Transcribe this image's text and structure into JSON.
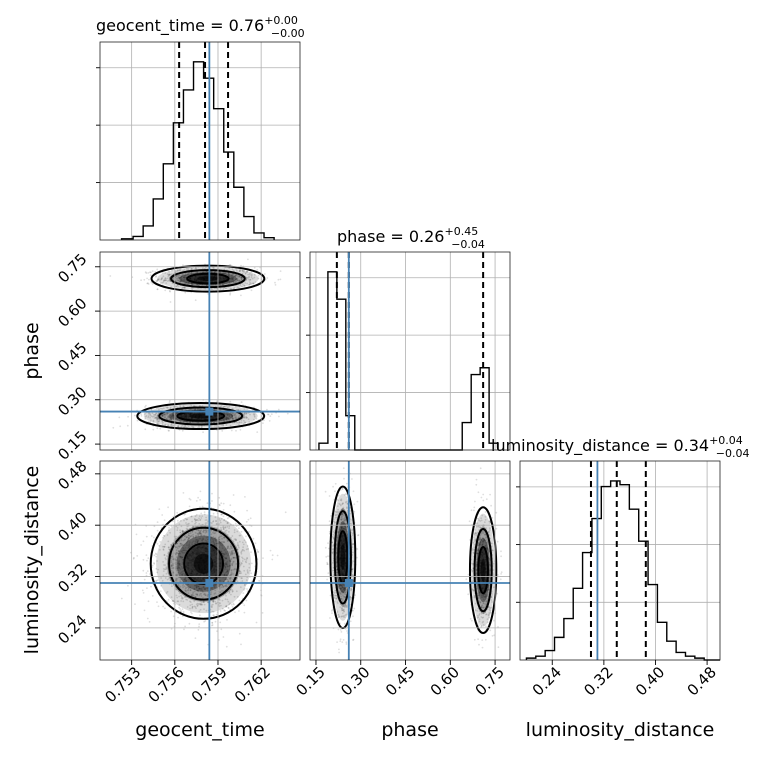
{
  "chart_data": {
    "type": "corner",
    "parameters": [
      "geocent_time",
      "phase",
      "luminosity_distance"
    ],
    "truths": {
      "geocent_time": 0.7584,
      "phase": 0.26,
      "luminosity_distance": 0.31
    },
    "axes": {
      "geocent_time": {
        "range": [
          0.7508,
          0.7647
        ],
        "ticks": [
          "0.753",
          "0.756",
          "0.759",
          "0.762"
        ],
        "tick_values": [
          0.753,
          0.756,
          0.759,
          0.762
        ]
      },
      "phase": {
        "range": [
          0.13,
          0.8
        ],
        "ticks": [
          "0.15",
          "0.30",
          "0.45",
          "0.60",
          "0.75"
        ],
        "tick_values": [
          0.15,
          0.3,
          0.45,
          0.6,
          0.75
        ]
      },
      "luminosity_distance": {
        "range": [
          0.19,
          0.5
        ],
        "ticks": [
          "0.24",
          "0.32",
          "0.40",
          "0.48"
        ],
        "tick_values": [
          0.24,
          0.32,
          0.4,
          0.48
        ]
      }
    },
    "marginals": {
      "geocent_time": {
        "title_main": "geocent_time = 0.76",
        "title_plus": "+0.00",
        "title_minus": "−0.00",
        "quantiles": [
          0.7563,
          0.7581,
          0.7597
        ],
        "bin_edges": [
          0.7523,
          0.7531,
          0.7538,
          0.7545,
          0.7552,
          0.7559,
          0.7566,
          0.7573,
          0.758,
          0.7587,
          0.7594,
          0.7601,
          0.7608,
          0.7615,
          0.7622,
          0.7629
        ],
        "counts": [
          1,
          3,
          12,
          35,
          65,
          100,
          128,
          152,
          138,
          112,
          75,
          45,
          20,
          6,
          2
        ]
      },
      "phase": {
        "title_main": "phase = 0.26",
        "title_plus": "+0.45",
        "title_minus": "−0.04",
        "quantiles": [
          0.22,
          0.26,
          0.71
        ],
        "bin_edges": [
          0.16,
          0.19,
          0.22,
          0.25,
          0.28,
          0.31,
          0.34,
          0.37,
          0.4,
          0.43,
          0.46,
          0.49,
          0.52,
          0.55,
          0.58,
          0.61,
          0.64,
          0.67,
          0.7,
          0.73,
          0.76
        ],
        "counts": [
          5,
          130,
          110,
          25,
          0,
          0,
          0,
          0,
          0,
          0,
          0,
          0,
          0,
          0,
          0,
          0,
          20,
          55,
          60,
          5
        ]
      },
      "luminosity_distance": {
        "title_main": "luminosity_distance = 0.34",
        "title_plus": "+0.04",
        "title_minus": "−0.04",
        "quantiles": [
          0.3,
          0.34,
          0.385
        ],
        "bin_edges": [
          0.2,
          0.2145,
          0.229,
          0.2435,
          0.258,
          0.2725,
          0.287,
          0.3015,
          0.316,
          0.3305,
          0.345,
          0.3595,
          0.374,
          0.3885,
          0.403,
          0.4175,
          0.432,
          0.4465,
          0.461,
          0.4755,
          0.49,
          0.5
        ],
        "counts": [
          1,
          2,
          5,
          12,
          22,
          38,
          57,
          75,
          92,
          95,
          93,
          80,
          63,
          40,
          20,
          10,
          4,
          2,
          1,
          0,
          0
        ]
      }
    },
    "joint": [
      {
        "x": "geocent_time",
        "y": "phase",
        "modes": [
          {
            "cx": 0.7583,
            "cy": 0.71,
            "sx": 0.0016,
            "sy": 0.018,
            "weight": 0.5
          },
          {
            "cx": 0.7578,
            "cy": 0.245,
            "sx": 0.0018,
            "sy": 0.018,
            "weight": 0.5
          }
        ]
      },
      {
        "x": "geocent_time",
        "y": "luminosity_distance",
        "modes": [
          {
            "cx": 0.758,
            "cy": 0.34,
            "sx": 0.0015,
            "sy": 0.035,
            "weight": 1.0
          }
        ]
      },
      {
        "x": "phase",
        "y": "luminosity_distance",
        "modes": [
          {
            "cx": 0.24,
            "cy": 0.35,
            "sx": 0.017,
            "sy": 0.045,
            "weight": 0.6
          },
          {
            "cx": 0.71,
            "cy": 0.33,
            "sx": 0.018,
            "sy": 0.04,
            "weight": 0.4
          }
        ]
      }
    ],
    "axis_labels": {
      "geocent_time": "geocent_time",
      "phase": "phase",
      "luminosity_distance": "luminosity_distance"
    },
    "grid": true,
    "colors": {
      "truth": "#4682b4",
      "hist": "#000000",
      "density": "#000000"
    }
  }
}
